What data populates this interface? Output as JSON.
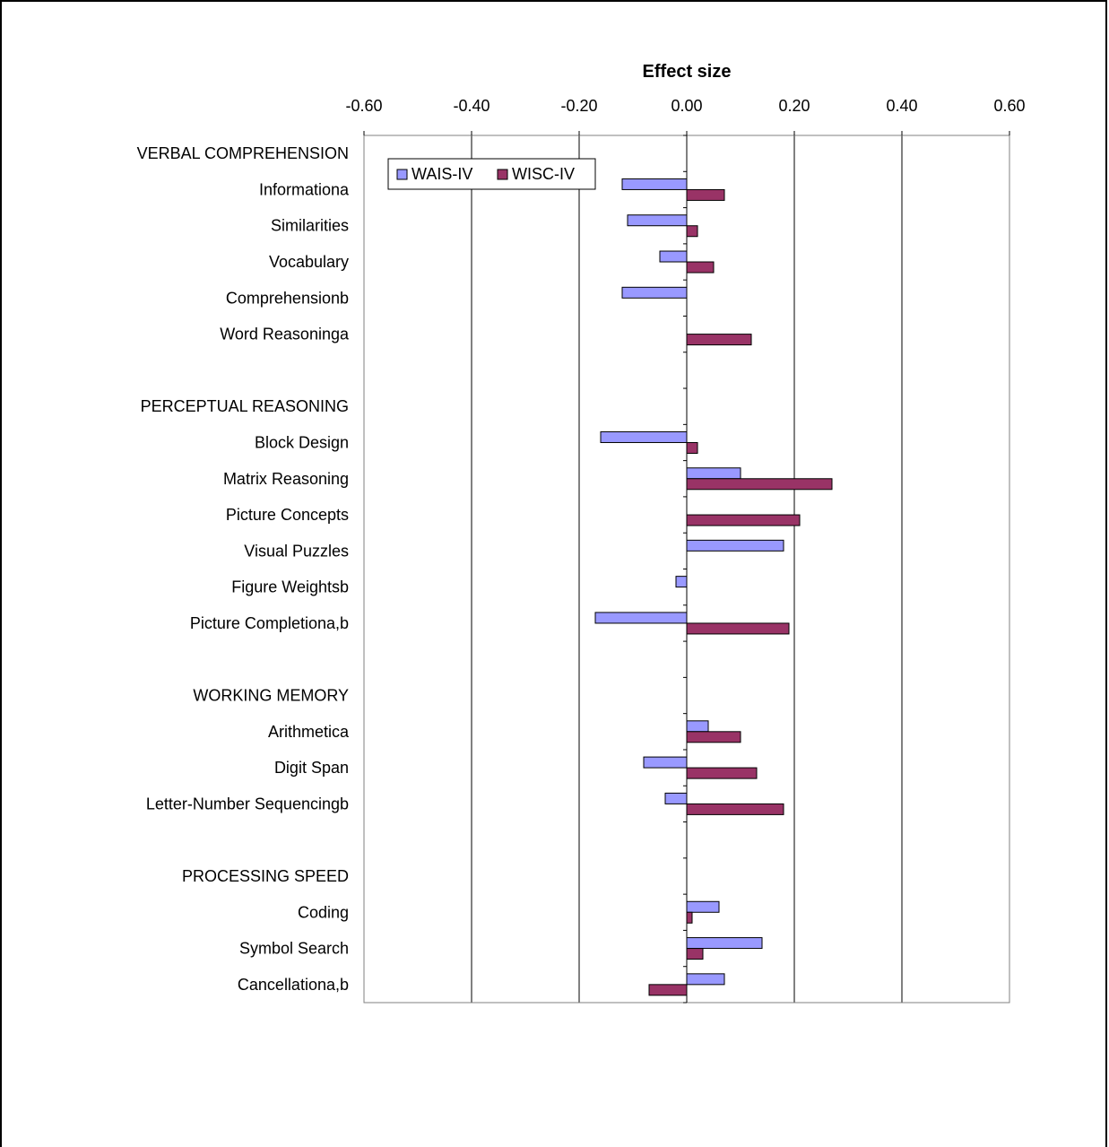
{
  "chart_data": {
    "type": "bar",
    "orientation": "horizontal",
    "title": "",
    "xlabel": "Effect size",
    "ylabel": "",
    "xlim": [
      -0.6,
      0.6
    ],
    "x_ticks": [
      -0.6,
      -0.4,
      -0.2,
      0.0,
      0.2,
      0.4,
      0.6
    ],
    "x_tick_labels": [
      "-0.60",
      "-0.40",
      "-0.20",
      "0.00",
      "0.20",
      "0.40",
      "0.60"
    ],
    "x_axis_position": "top",
    "grid": "vertical major gridlines",
    "legend_position": "top-left",
    "categories": [
      "VERBAL COMPREHENSION",
      "Informationa",
      "Similarities",
      "Vocabulary",
      "Comprehensionb",
      "Word Reasoninga",
      "",
      "PERCEPTUAL REASONING",
      "Block Design",
      "Matrix Reasoning",
      "Picture Concepts",
      "Visual Puzzles",
      "Figure Weightsb",
      "Picture Completiona,b",
      "",
      "WORKING MEMORY",
      "Arithmetica",
      "Digit Span",
      "Letter-Number Sequencingb",
      "",
      "PROCESSING SPEED",
      "Coding",
      "Symbol Search",
      "Cancellationa,b"
    ],
    "series": [
      {
        "name": "WAIS-IV",
        "color": "#9999FF",
        "values": [
          null,
          -0.12,
          -0.11,
          -0.05,
          -0.12,
          null,
          null,
          null,
          -0.16,
          0.1,
          null,
          0.18,
          -0.02,
          -0.17,
          null,
          null,
          0.04,
          -0.08,
          -0.04,
          null,
          null,
          0.06,
          0.14,
          0.07
        ]
      },
      {
        "name": "WISC-IV",
        "color": "#993366",
        "values": [
          null,
          0.07,
          0.02,
          0.05,
          null,
          0.12,
          null,
          null,
          0.02,
          0.27,
          0.21,
          null,
          null,
          0.19,
          null,
          null,
          0.1,
          0.13,
          0.18,
          null,
          null,
          0.01,
          0.03,
          -0.07
        ]
      }
    ]
  }
}
